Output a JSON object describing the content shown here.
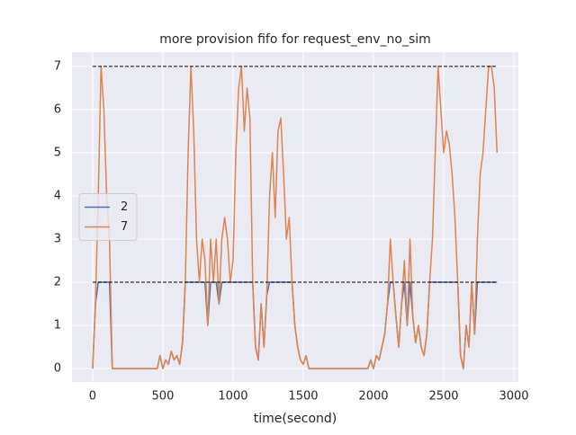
{
  "chart_data": {
    "type": "line",
    "title": "more provision fifo for request_env_no_sim",
    "xlabel": "time(second)",
    "x": [
      0,
      20,
      40,
      60,
      80,
      100,
      120,
      140,
      160,
      180,
      200,
      220,
      240,
      260,
      280,
      300,
      320,
      340,
      360,
      380,
      400,
      420,
      440,
      460,
      480,
      500,
      520,
      540,
      560,
      580,
      600,
      620,
      640,
      660,
      680,
      700,
      720,
      740,
      760,
      780,
      800,
      820,
      840,
      860,
      880,
      900,
      920,
      940,
      960,
      980,
      1000,
      1020,
      1040,
      1060,
      1080,
      1100,
      1120,
      1140,
      1160,
      1180,
      1200,
      1220,
      1240,
      1260,
      1280,
      1300,
      1320,
      1340,
      1360,
      1380,
      1400,
      1420,
      1440,
      1460,
      1480,
      1500,
      1520,
      1540,
      1560,
      1580,
      1600,
      1620,
      1640,
      1660,
      1680,
      1700,
      1720,
      1740,
      1760,
      1780,
      1800,
      1820,
      1840,
      1860,
      1880,
      1900,
      1920,
      1940,
      1960,
      1980,
      2000,
      2020,
      2040,
      2060,
      2080,
      2100,
      2120,
      2140,
      2160,
      2180,
      2200,
      2220,
      2240,
      2260,
      2280,
      2300,
      2320,
      2340,
      2360,
      2380,
      2400,
      2420,
      2440,
      2460,
      2480,
      2500,
      2520,
      2540,
      2560,
      2580,
      2600,
      2620,
      2640,
      2660,
      2680,
      2700,
      2720,
      2740,
      2760,
      2780,
      2800,
      2820,
      2840,
      2860,
      2880
    ],
    "series": [
      {
        "name": "2",
        "color": "#4c72b0",
        "values": [
          0,
          1.5,
          2,
          2,
          2,
          2,
          2,
          0,
          0,
          0,
          0,
          0,
          0,
          0,
          0,
          0,
          0,
          0,
          0,
          0,
          0,
          0,
          0,
          0,
          0.3,
          0,
          0.2,
          0.1,
          0.4,
          0.2,
          0.3,
          0.1,
          0.6,
          2,
          2,
          2,
          2,
          2,
          2,
          2,
          2,
          1,
          2,
          2,
          2,
          1.5,
          2,
          2,
          2,
          2,
          2,
          2,
          2,
          2,
          2,
          2,
          2,
          2,
          0.5,
          0.2,
          1.5,
          0.5,
          1.7,
          2,
          2,
          2,
          2,
          2,
          2,
          2,
          2,
          2,
          1,
          0.5,
          0.2,
          0.1,
          0.3,
          0,
          0,
          0,
          0,
          0,
          0,
          0,
          0,
          0,
          0,
          0,
          0,
          0,
          0,
          0,
          0,
          0,
          0,
          0,
          0,
          0,
          0,
          0.2,
          0,
          0.3,
          0.2,
          0.5,
          0.8,
          1.5,
          2,
          2,
          1.2,
          0.5,
          1.5,
          2,
          1,
          2,
          1.2,
          0.6,
          1,
          0.5,
          0.3,
          0.8,
          2,
          2,
          2,
          2,
          2,
          2,
          2,
          2,
          2,
          2,
          2,
          0.3,
          0,
          1,
          0.5,
          2,
          0.8,
          2,
          2,
          2,
          2,
          2,
          2,
          2,
          2
        ]
      },
      {
        "name": "7",
        "color": "#dd8452",
        "values": [
          0,
          1.5,
          4,
          7,
          6,
          4,
          3,
          0,
          0,
          0,
          0,
          0,
          0,
          0,
          0,
          0,
          0,
          0,
          0,
          0,
          0,
          0,
          0,
          0,
          0.3,
          0,
          0.2,
          0.1,
          0.4,
          0.2,
          0.3,
          0.1,
          0.6,
          2,
          5,
          7,
          5.5,
          3,
          2,
          3,
          2.5,
          1,
          3,
          2,
          3,
          1.5,
          3,
          3.5,
          3,
          2,
          2.5,
          5,
          6.5,
          7,
          5.5,
          6.5,
          5.8,
          2,
          0.5,
          0.2,
          1.5,
          0.5,
          1.7,
          4,
          5,
          3.5,
          5.5,
          5.8,
          4.5,
          3,
          3.5,
          2,
          1,
          0.5,
          0.2,
          0.1,
          0.3,
          0,
          0,
          0,
          0,
          0,
          0,
          0,
          0,
          0,
          0,
          0,
          0,
          0,
          0,
          0,
          0,
          0,
          0,
          0,
          0,
          0,
          0,
          0.2,
          0,
          0.3,
          0.2,
          0.5,
          0.8,
          1.5,
          3,
          2,
          1.2,
          0.5,
          1.5,
          2.5,
          1,
          3,
          1.2,
          0.6,
          1,
          0.5,
          0.3,
          0.8,
          2,
          3,
          5,
          7,
          6,
          5,
          5.5,
          5.2,
          4.5,
          3.5,
          2,
          0.3,
          0,
          1,
          0.5,
          2,
          0.8,
          3,
          4.5,
          5,
          6,
          7,
          7,
          6.5,
          5
        ]
      }
    ],
    "hlines": [
      {
        "value": 7,
        "xmin": 0,
        "xmax": 2880,
        "color": "#000000"
      },
      {
        "value": 2,
        "xmin": 0,
        "xmax": 2880,
        "color": "#000000"
      }
    ],
    "xlim": [
      -147,
      3032
    ],
    "ylim": [
      -0.31,
      7.33
    ],
    "xticks": [
      0,
      500,
      1000,
      1500,
      2000,
      2500,
      3000
    ],
    "yticks": [
      0,
      1,
      2,
      3,
      4,
      5,
      6,
      7
    ],
    "grid": true,
    "legend": "center left"
  }
}
